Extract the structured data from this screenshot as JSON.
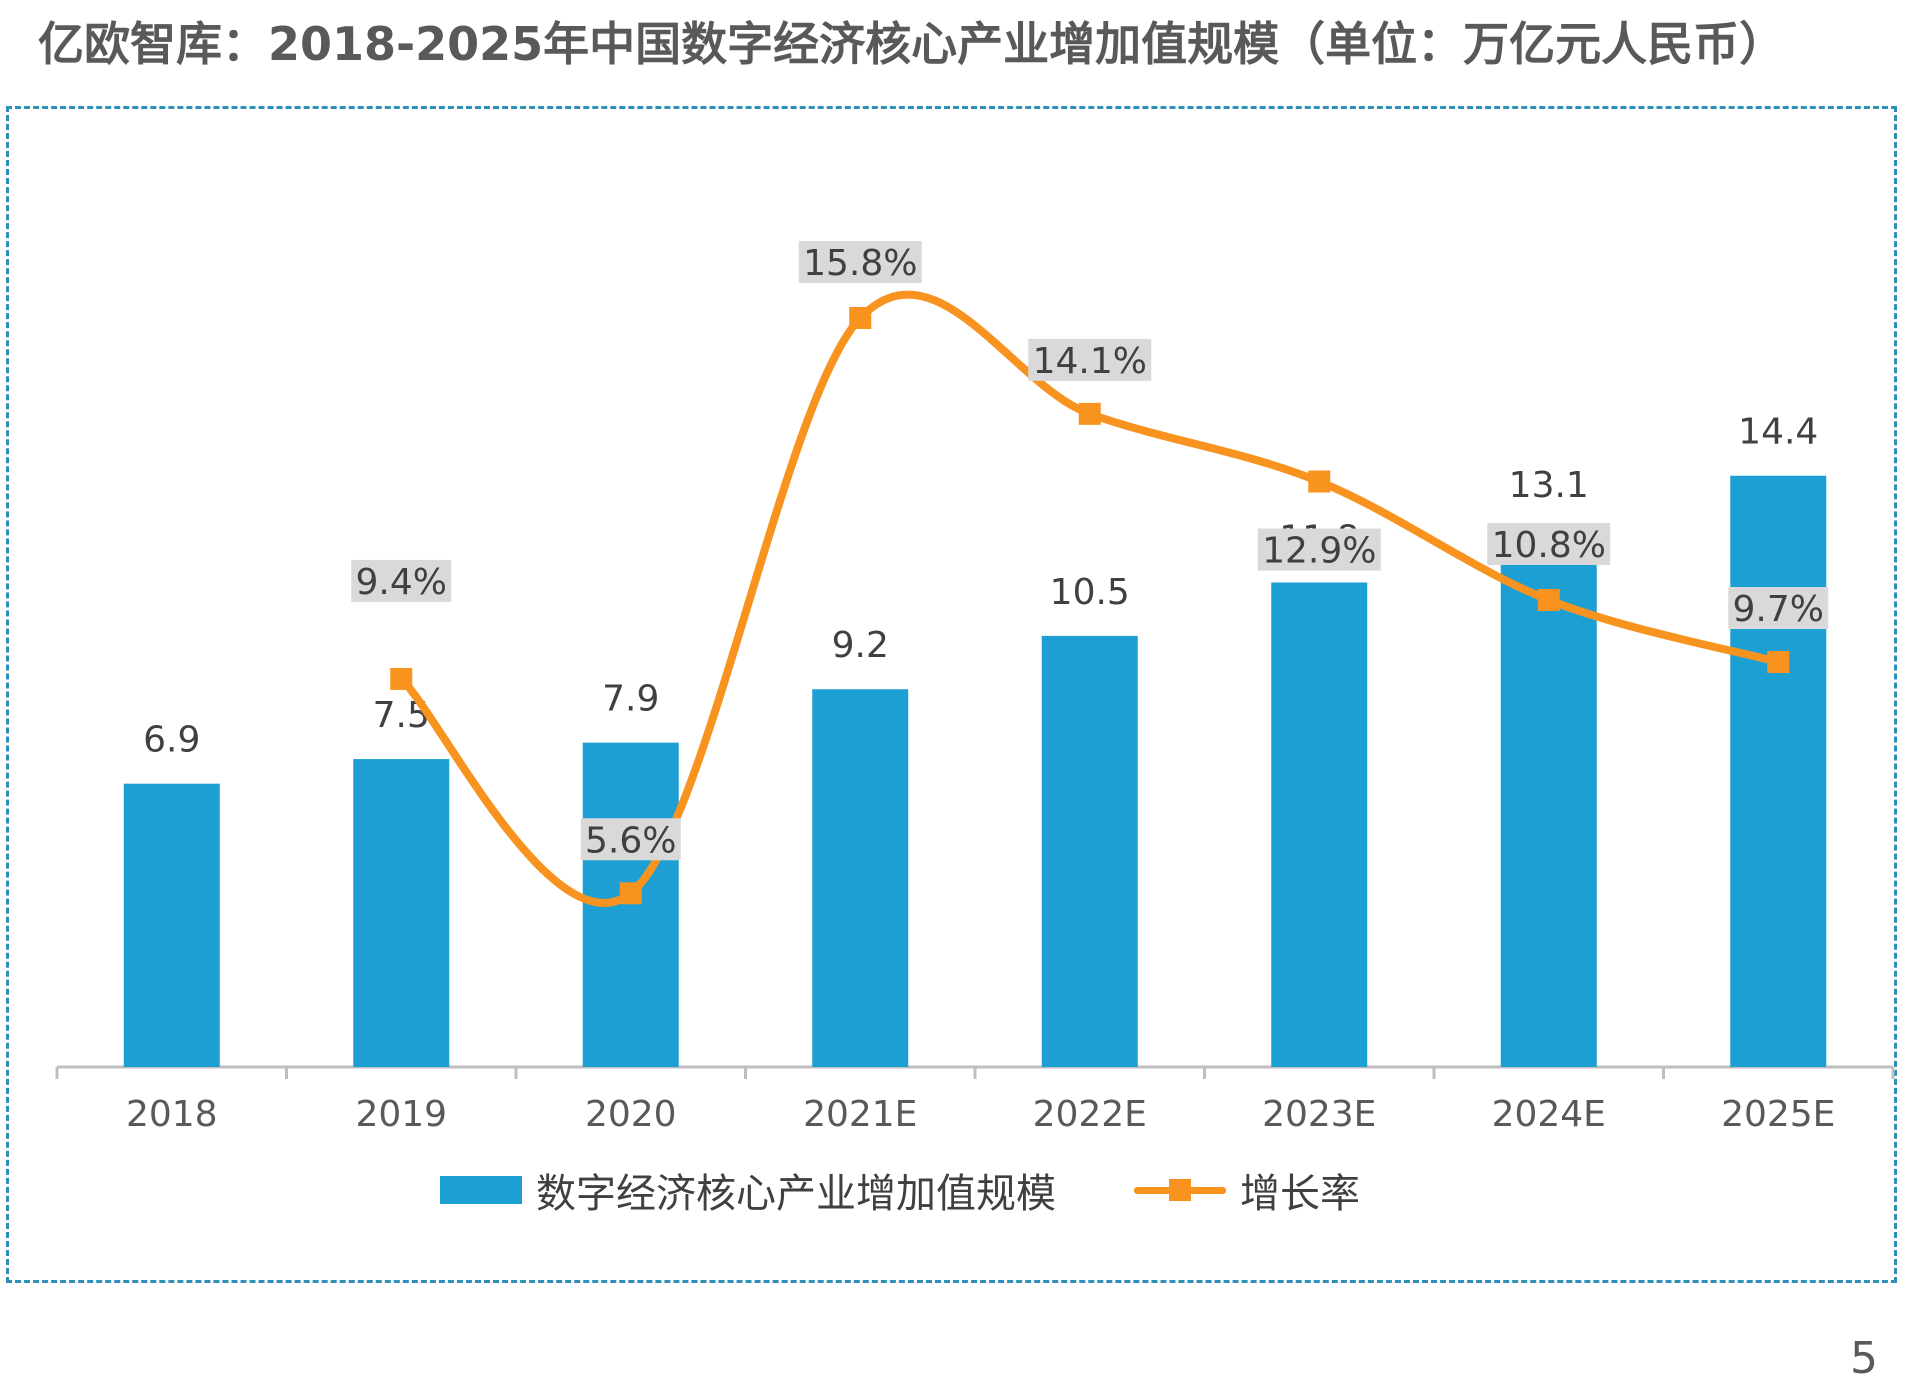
{
  "title": "亿欧智库：2018-2025年中国数字经济核心产业增加值规模（单位：万亿元人民币）",
  "page_number": "5",
  "colors": {
    "bar": "#1d9fd3",
    "line": "#f7931e",
    "frame": "#2e8fb8",
    "text": "#404040",
    "label_bg": "#d9d9d9"
  },
  "chart_data": {
    "type": "bar",
    "categories": [
      "2018",
      "2019",
      "2020",
      "2021E",
      "2022E",
      "2023E",
      "2024E",
      "2025E"
    ],
    "series": [
      {
        "name": "数字经济核心产业增加值规模",
        "type": "bar",
        "values": [
          6.9,
          7.5,
          7.9,
          9.2,
          10.5,
          11.8,
          13.1,
          14.4
        ],
        "labels": [
          "6.9",
          "7.5",
          "7.9",
          "9.2",
          "10.5",
          "11.8",
          "13.1",
          "14.4"
        ]
      },
      {
        "name": "增长率",
        "type": "line",
        "values": [
          null,
          9.4,
          5.6,
          15.8,
          14.1,
          12.9,
          10.8,
          9.7
        ],
        "labels": [
          "",
          "9.4%",
          "5.6%",
          "15.8%",
          "14.1%",
          "12.9%",
          "10.8%",
          "9.7%"
        ]
      }
    ],
    "legend_position": "bottom",
    "grid": false
  }
}
